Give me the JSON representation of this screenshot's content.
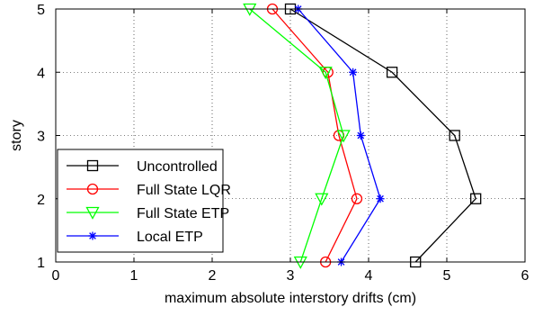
{
  "chart_data": {
    "type": "line",
    "xlabel": "maximum absolute interstory drifts (cm)",
    "ylabel": "story",
    "xlim": [
      0,
      6
    ],
    "ylim": [
      1,
      5
    ],
    "xticks": [
      0,
      1,
      2,
      3,
      4,
      5,
      6
    ],
    "yticks": [
      1,
      2,
      3,
      4,
      5
    ],
    "xtick_labels": [
      "0",
      "1",
      "2",
      "3",
      "4",
      "5",
      "6"
    ],
    "ytick_labels": [
      "1",
      "2",
      "3",
      "4",
      "5"
    ],
    "grid": true,
    "legend_position": "bottom-left",
    "series": [
      {
        "name": "Uncontrolled",
        "color": "#000000",
        "marker": "square",
        "x": [
          4.6,
          5.37,
          5.1,
          4.3,
          3.0
        ],
        "y": [
          1,
          2,
          3,
          4,
          5
        ]
      },
      {
        "name": "Full State LQR",
        "color": "#ff0000",
        "marker": "circle",
        "x": [
          3.45,
          3.85,
          3.62,
          3.48,
          2.77
        ],
        "y": [
          1,
          2,
          3,
          4,
          5
        ]
      },
      {
        "name": "Full State ETP",
        "color": "#00ff00",
        "marker": "triangle-down",
        "x": [
          3.13,
          3.4,
          3.68,
          3.45,
          2.48
        ],
        "y": [
          1,
          2,
          3,
          4,
          5
        ]
      },
      {
        "name": "Local ETP",
        "color": "#0000ff",
        "marker": "asterisk",
        "x": [
          3.65,
          4.15,
          3.9,
          3.8,
          3.1
        ],
        "y": [
          1,
          2,
          3,
          4,
          5
        ]
      }
    ]
  }
}
